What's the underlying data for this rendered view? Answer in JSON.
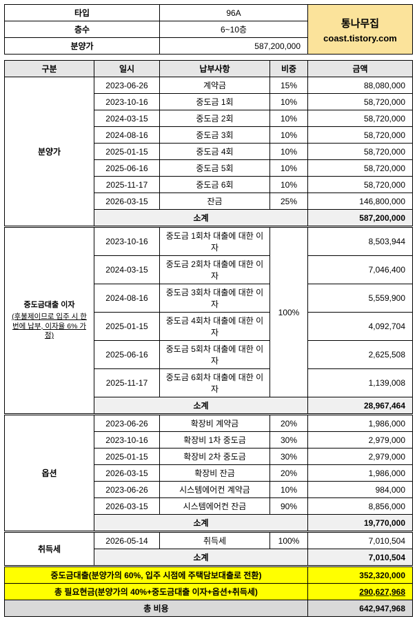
{
  "header": {
    "labels": {
      "type": "타입",
      "floor": "층수",
      "price": "분양가"
    },
    "values": {
      "type": "96A",
      "floor": "6~10층",
      "price": "587,200,000"
    },
    "brand_line1": "통나무집",
    "brand_line2": "coast.tistory.com"
  },
  "cols": {
    "gubun": "구분",
    "date": "일시",
    "item": "납부사항",
    "ratio": "비중",
    "amount": "금액"
  },
  "sections": [
    {
      "label": "분양가",
      "rows": [
        {
          "date": "2023-06-26",
          "item": "계약금",
          "ratio": "15%",
          "amount": "88,080,000"
        },
        {
          "date": "2023-10-16",
          "item": "중도금 1회",
          "ratio": "10%",
          "amount": "58,720,000"
        },
        {
          "date": "2024-03-15",
          "item": "중도금 2회",
          "ratio": "10%",
          "amount": "58,720,000"
        },
        {
          "date": "2024-08-16",
          "item": "중도금 3회",
          "ratio": "10%",
          "amount": "58,720,000"
        },
        {
          "date": "2025-01-15",
          "item": "중도금 4회",
          "ratio": "10%",
          "amount": "58,720,000"
        },
        {
          "date": "2025-06-16",
          "item": "중도금 5회",
          "ratio": "10%",
          "amount": "58,720,000"
        },
        {
          "date": "2025-11-17",
          "item": "중도금 6회",
          "ratio": "10%",
          "amount": "58,720,000"
        },
        {
          "date": "2026-03-15",
          "item": "잔금",
          "ratio": "25%",
          "amount": "146,800,000"
        }
      ],
      "subtotal_label": "소계",
      "subtotal_amount": "587,200,000"
    },
    {
      "label": "중도금대출 이자",
      "label_note": "(후불제이므로 입주 시 한 번에 납부, 이자율 6% 가정)",
      "merged_ratio": "100%",
      "rows": [
        {
          "date": "2023-10-16",
          "item": "중도금 1회차 대출에 대한 이자",
          "amount": "8,503,944"
        },
        {
          "date": "2024-03-15",
          "item": "중도금 2회차 대출에 대한 이자",
          "amount": "7,046,400"
        },
        {
          "date": "2024-08-16",
          "item": "중도금 3회차 대출에 대한 이자",
          "amount": "5,559,900"
        },
        {
          "date": "2025-01-15",
          "item": "중도금 4회차 대출에 대한 이자",
          "amount": "4,092,704"
        },
        {
          "date": "2025-06-16",
          "item": "중도금 5회차 대출에 대한 이자",
          "amount": "2,625,508"
        },
        {
          "date": "2025-11-17",
          "item": "중도금 6회차 대출에 대한 이자",
          "amount": "1,139,008"
        }
      ],
      "subtotal_label": "소계",
      "subtotal_amount": "28,967,464"
    },
    {
      "label": "옵션",
      "rows": [
        {
          "date": "2023-06-26",
          "item": "확장비 계약금",
          "ratio": "20%",
          "amount": "1,986,000"
        },
        {
          "date": "2023-10-16",
          "item": "확장비 1차 중도금",
          "ratio": "30%",
          "amount": "2,979,000"
        },
        {
          "date": "2025-01-15",
          "item": "확장비 2차 중도금",
          "ratio": "30%",
          "amount": "2,979,000"
        },
        {
          "date": "2026-03-15",
          "item": "확장비 잔금",
          "ratio": "20%",
          "amount": "1,986,000"
        },
        {
          "date": "2023-06-26",
          "item": "시스템에어컨 계약금",
          "ratio": "10%",
          "amount": "984,000"
        },
        {
          "date": "2026-03-15",
          "item": "시스템에어컨 잔금",
          "ratio": "90%",
          "amount": "8,856,000"
        }
      ],
      "subtotal_label": "소계",
      "subtotal_amount": "19,770,000"
    },
    {
      "label": "취득세",
      "rows": [
        {
          "date": "2026-05-14",
          "item": "취득세",
          "ratio": "100%",
          "amount": "7,010,504"
        }
      ],
      "subtotal_label": "소계",
      "subtotal_amount": "7,010,504"
    }
  ],
  "footer": {
    "row1_label": "중도금대출(분양가의 60%, 입주 시점에 주택담보대출로 전환)",
    "row1_amount": "352,320,000",
    "row2_label": "총 필요현금(분양가의 40%+중도금대출 이자+옵션+취득세)",
    "row2_amount": "290,627,968",
    "row3_label": "총 비용",
    "row3_amount": "642,947,968"
  }
}
